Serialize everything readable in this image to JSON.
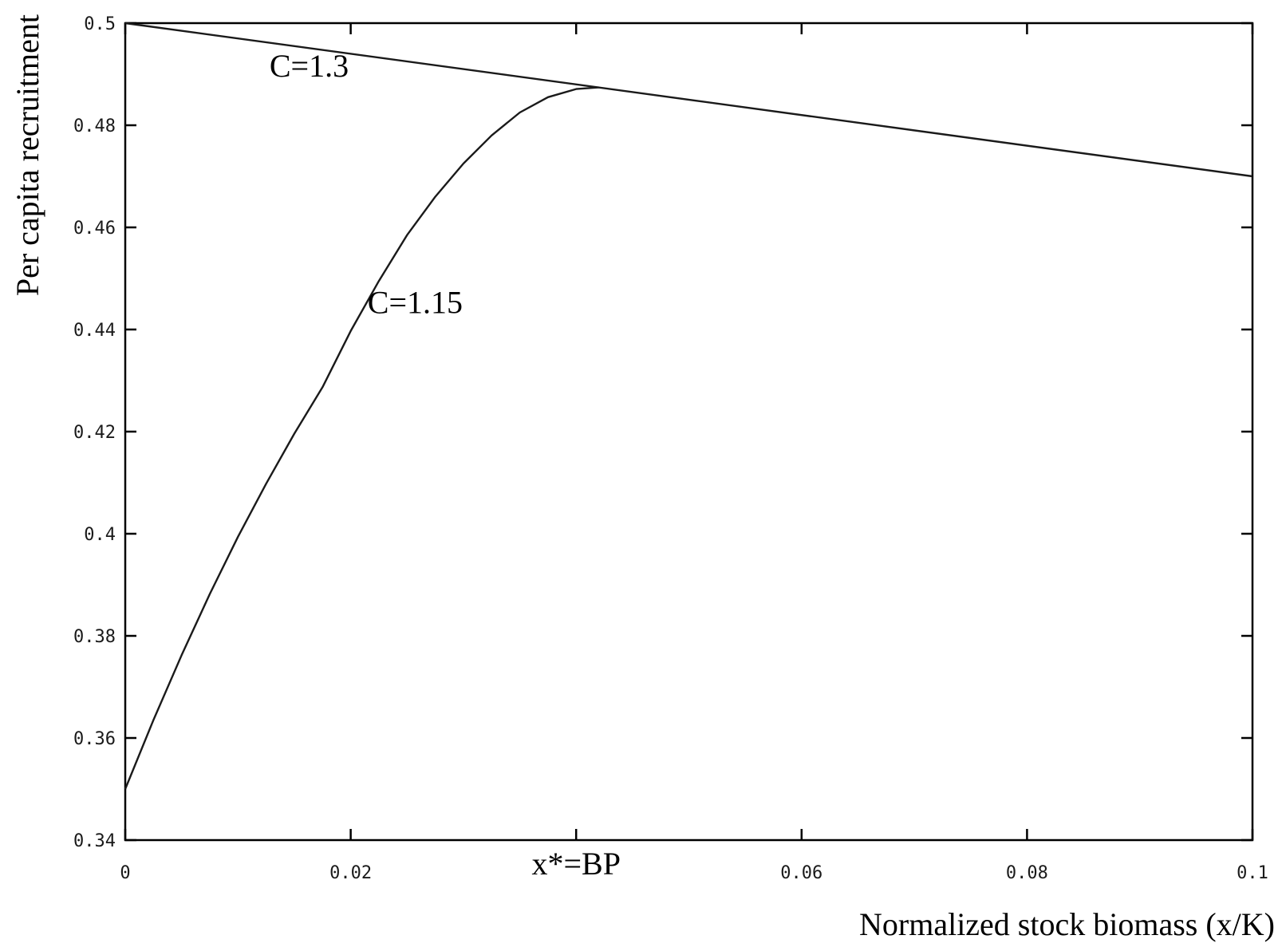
{
  "chart_data": {
    "type": "line",
    "title": "",
    "xlabel": "Normalized stock biomass (x/K)",
    "ylabel": "Per capita recruitment",
    "xlim": [
      0,
      0.1
    ],
    "ylim": [
      0.34,
      0.5
    ],
    "x_ticks": [
      0,
      0.02,
      0.04,
      0.06,
      0.08,
      0.1
    ],
    "x_tick_labels": [
      "0",
      "0.02",
      "x*=BP",
      "0.06",
      "0.08",
      "0.1"
    ],
    "y_ticks": [
      0.34,
      0.36,
      0.38,
      0.4,
      0.42,
      0.44,
      0.46,
      0.48,
      0.5
    ],
    "y_tick_labels": [
      "0.34",
      "0.36",
      "0.38",
      "0.4",
      "0.42",
      "0.44",
      "0.46",
      "0.48",
      "0.5"
    ],
    "grid": false,
    "legend": "none",
    "series": [
      {
        "x": [
          0,
          0.1
        ],
        "y": [
          0.5,
          0.47
        ],
        "color": "#1a1a1a"
      },
      {
        "x": [
          0,
          0.0025,
          0.005,
          0.0075,
          0.01,
          0.0125,
          0.015,
          0.0175,
          0.02,
          0.0225,
          0.025,
          0.0275,
          0.03,
          0.0325,
          0.035,
          0.0375,
          0.04,
          0.042
        ],
        "y": [
          0.35,
          0.3635,
          0.3762,
          0.3882,
          0.3994,
          0.4098,
          0.4196,
          0.4287,
          0.4397,
          0.4495,
          0.4585,
          0.466,
          0.4725,
          0.478,
          0.4825,
          0.4855,
          0.4871,
          0.4874
        ],
        "color": "#1a1a1a"
      }
    ],
    "annotations": [
      {
        "text": "C=1.3",
        "x": 0.0128,
        "y": 0.4895
      },
      {
        "text": "C=1.15",
        "x": 0.0215,
        "y": 0.4432
      }
    ]
  }
}
